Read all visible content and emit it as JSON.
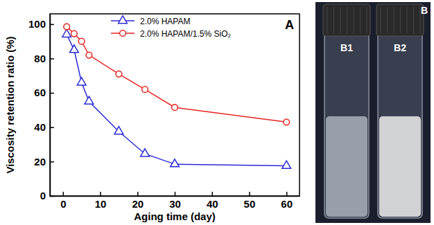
{
  "chart_data": {
    "type": "line",
    "panel_label": "A",
    "x_label": "Aging time (day)",
    "y_label": "Viscosity retention ratio (%)",
    "x": [
      1,
      3,
      5,
      7,
      15,
      22,
      30,
      60
    ],
    "series": [
      {
        "name": "2.0% HAPAM",
        "color": "#2b2bd6",
        "marker": "triangle",
        "line_style": "solid",
        "values": [
          94,
          85,
          66,
          55,
          37.5,
          24.5,
          18.5,
          17.5
        ]
      },
      {
        "name": "2.0% HAPAM/1.5% SiO₂",
        "color": "#e5231f",
        "marker": "circle",
        "line_style": "solid",
        "values": [
          98.5,
          94.5,
          90,
          82,
          71,
          62,
          51.5,
          43
        ]
      }
    ],
    "xlim": [
      -3.5,
      63.5
    ],
    "xticks": [
      0,
      10,
      20,
      30,
      40,
      50,
      60
    ],
    "ylim": [
      0,
      106
    ],
    "yticks": [
      0,
      20,
      40,
      60,
      80,
      100
    ],
    "grid": false,
    "legend": "top"
  },
  "photo": {
    "panel_label": "B",
    "vials": [
      {
        "label": "B1"
      },
      {
        "label": "B2"
      }
    ]
  }
}
